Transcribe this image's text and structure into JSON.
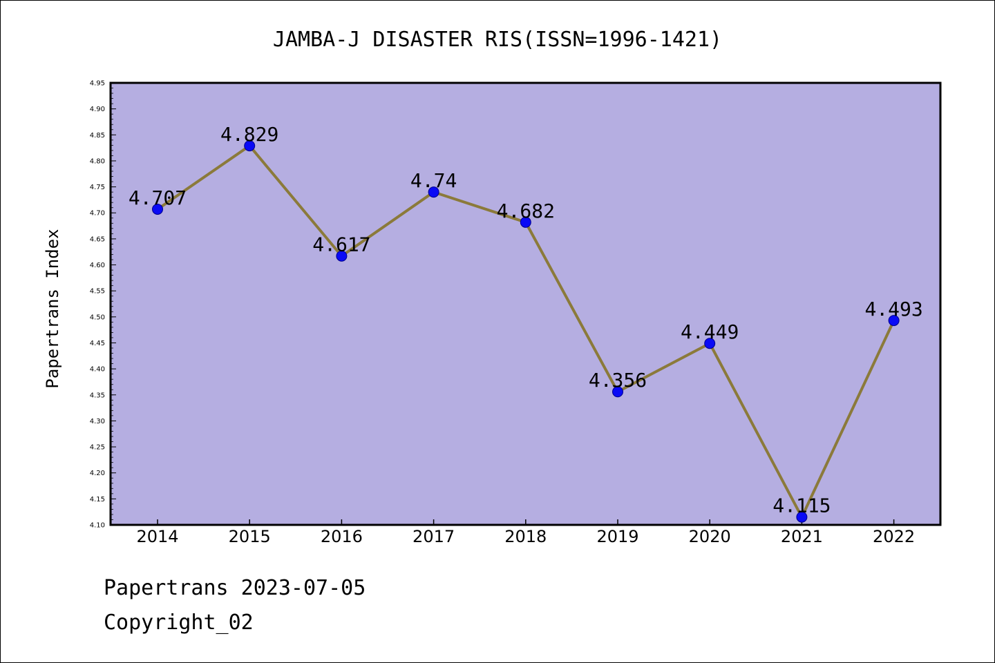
{
  "chart_data": {
    "type": "line",
    "title": "JAMBA-J DISASTER RIS(ISSN=1996-1421)",
    "xlabel": "",
    "ylabel": "Papertrans Index",
    "categories": [
      "2014",
      "2015",
      "2016",
      "2017",
      "2018",
      "2019",
      "2020",
      "2021",
      "2022"
    ],
    "series": [
      {
        "values": [
          4.707,
          4.829,
          4.617,
          4.74,
          4.682,
          4.356,
          4.449,
          4.115,
          4.493
        ],
        "labels": [
          "4.707",
          "4.829",
          "4.617",
          "4.74",
          "4.682",
          "4.356",
          "4.449",
          "4.115",
          "4.493"
        ]
      }
    ],
    "ylim": [
      4.1,
      4.95
    ],
    "yticks": [
      "4.10",
      "4.15",
      "4.20",
      "4.25",
      "4.30",
      "4.35",
      "4.40",
      "4.45",
      "4.50",
      "4.55",
      "4.60",
      "4.65",
      "4.70",
      "4.75",
      "4.80",
      "4.85",
      "4.90",
      "4.95"
    ],
    "grid": false,
    "legend": "none",
    "colors": {
      "plot_background": "#b5aee1",
      "line": "#8b7a3a",
      "marker": "#0a0af5",
      "marker_edge": "#00008b"
    }
  },
  "footer": {
    "date_line": "Papertrans 2023-07-05",
    "copyright_line": "Copyright_02"
  }
}
